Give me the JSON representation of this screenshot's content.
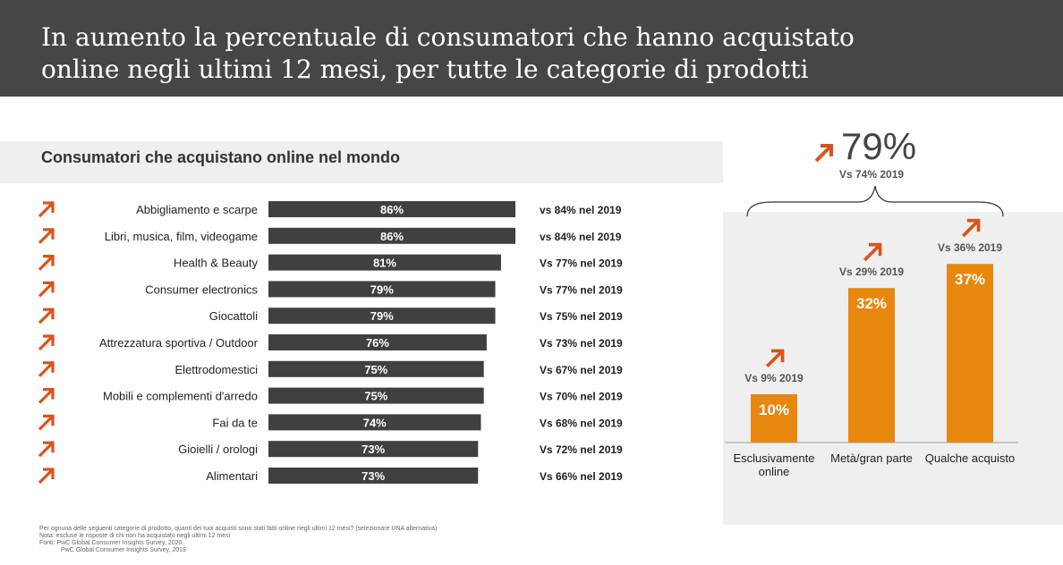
{
  "header": {
    "title_line1": "In aumento la percentuale di consumatori che hanno acquistato",
    "title_line2": "online negli ultimi 12 mesi, per tutte le categorie di prodotti"
  },
  "left_panel": {
    "subtitle": "Consumatori che acquistano online nel mondo"
  },
  "right_panel": {
    "headline": "79%",
    "headline_vs": "Vs 74% 2019"
  },
  "colors": {
    "header_bg": "#464646",
    "bar_dark": "#404040",
    "bar_orange": "#e8870e",
    "arrow_orange": "#d9531e",
    "panel_bg": "#efefef"
  },
  "icons": {
    "trend": "arrow-up-right-icon"
  },
  "chart_data": [
    {
      "type": "bar",
      "orientation": "horizontal",
      "categories": [
        "Abbigliamento e scarpe",
        "Libri, musica, film, videogame",
        "Health & Beauty",
        "Consumer electronics",
        "Giocattoli",
        "Attrezzatura sportiva / Outdoor",
        "Elettrodomestici",
        "Mobili e complementi d'arredo",
        "Fai da te",
        "Gioielli / orologi",
        "Alimentari"
      ],
      "values": [
        86,
        86,
        81,
        79,
        79,
        76,
        75,
        75,
        74,
        73,
        73
      ],
      "data_labels": [
        "86%",
        "86%",
        "81%",
        "79%",
        "79%",
        "76%",
        "75%",
        "75%",
        "74%",
        "73%",
        "73%"
      ],
      "annotations": [
        "vs 84% nel 2019",
        "vs 84% nel 2019",
        "Vs 77% nel 2019",
        "Vs 77% nel 2019",
        "Vs 75% nel 2019",
        "Vs 73% nel 2019",
        "Vs 67% nel 2019",
        "Vs 70% nel 2019",
        "Vs 68% nel 2019",
        "Vs 72% nel 2019",
        "Vs 66% nel 2019"
      ],
      "xlim": [
        0,
        100
      ]
    },
    {
      "type": "bar",
      "orientation": "vertical",
      "categories": [
        "Esclusivamente\nonline",
        "Metà/gran parte",
        "Qualche acquisto"
      ],
      "values": [
        10,
        32,
        37
      ],
      "data_labels": [
        "10%",
        "32%",
        "37%"
      ],
      "annotations": [
        "Vs 9% 2019",
        "Vs 29% 2019",
        "Vs 36% 2019"
      ],
      "ylim": [
        0,
        37
      ]
    }
  ],
  "footnote": {
    "line1": "Per ognuna delle seguenti categorie di prodotto, quanti dei tuoi acquisti sono stati fatti online negli ultimi 12 mesi? (selezionare UNA alternativa)",
    "line2": "Nota: escluse le risposte di chi non ha acquistato negli ultimi 12 mesi",
    "line3": "Fonti: PwC Global Consumer Insights Survey, 2020",
    "line4": "PwC Global Consumer Insights Survey, 2019"
  }
}
